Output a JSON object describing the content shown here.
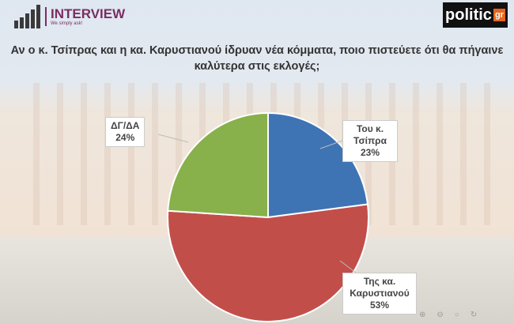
{
  "header": {
    "brand": "INTERVIEW",
    "tagline": "We simply ask!",
    "media_logo": "politic",
    "media_logo_suffix": "gr"
  },
  "chart_data": {
    "type": "pie",
    "title": "Αν ο κ. Τσίπρας και η κα. Καρυστιανού ίδρυαν νέα κόμματα, ποιο πιστεύετε ότι θα πήγαινε καλύτερα στις εκλογές;",
    "slices": [
      {
        "label": "Του κ. Τσίπρα",
        "value": 23,
        "value_label": "23%",
        "color": "#3e74b4"
      },
      {
        "label": "Της κα. Καρυστιανού",
        "value": 53,
        "value_label": "53%",
        "color": "#c24e4a"
      },
      {
        "label": "ΔΓ/ΔΑ",
        "value": 24,
        "value_label": "24%",
        "color": "#88b04b"
      }
    ],
    "start_angle": "12 o'clock",
    "direction": "clockwise"
  },
  "controls": [
    "zoom-in-icon",
    "zoom-out-icon",
    "search-icon",
    "rotate-icon"
  ]
}
